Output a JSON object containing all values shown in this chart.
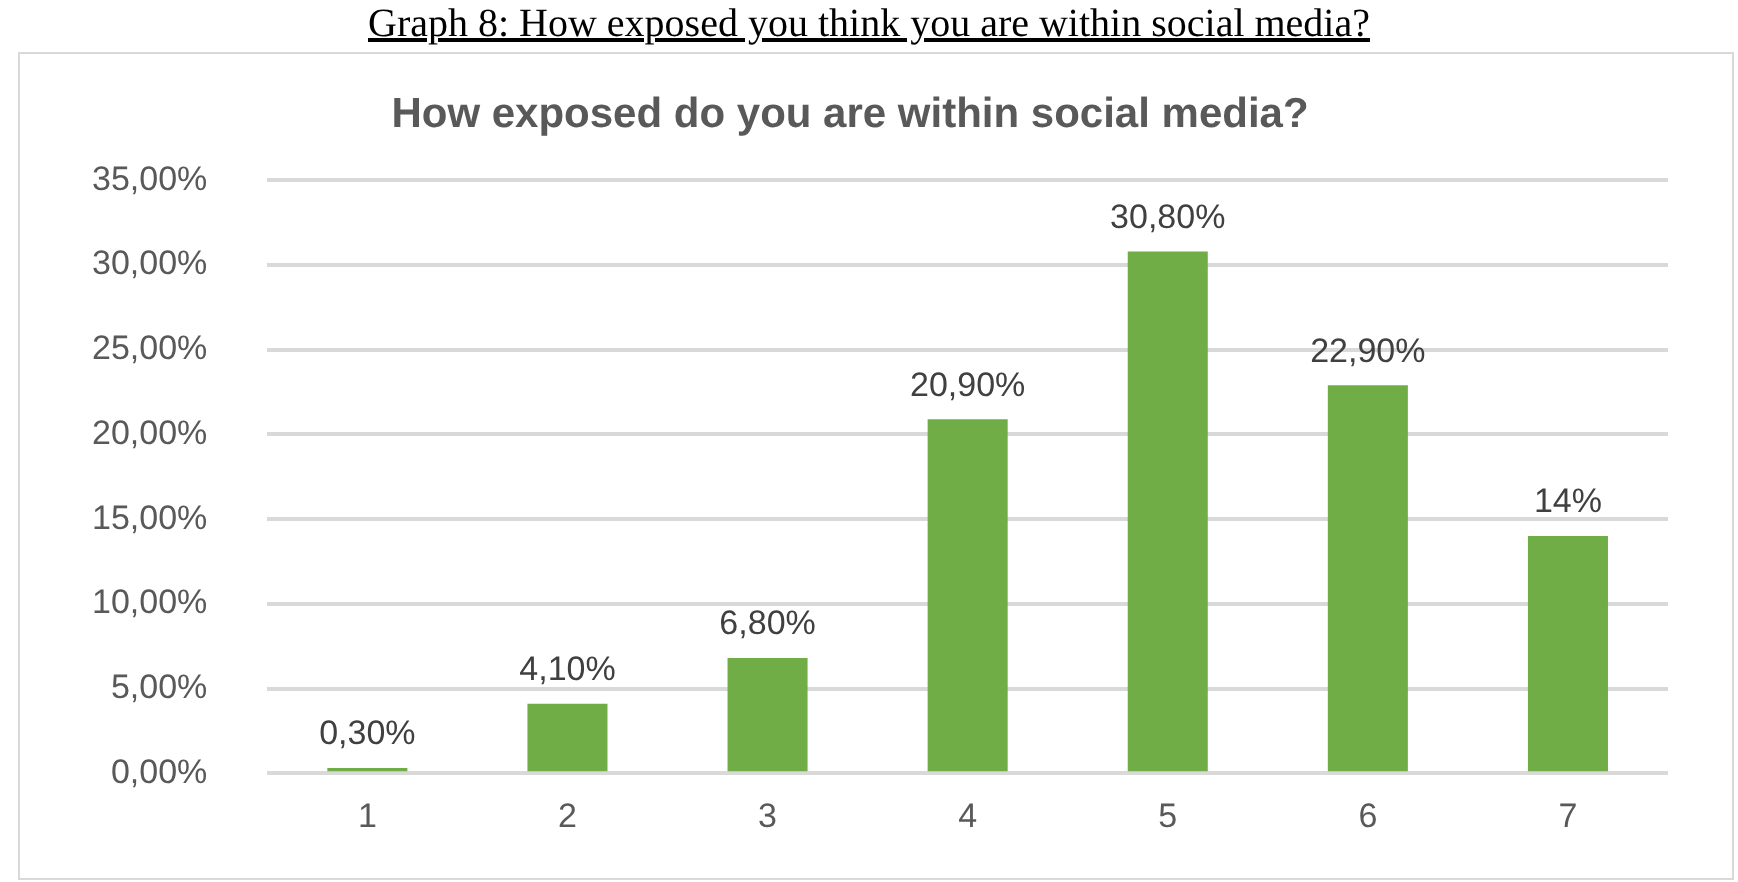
{
  "chart_data": {
    "type": "bar",
    "title": "How exposed do you are within social media?",
    "annotations": [
      "Graph 8: How exposed you think you are within social media?"
    ],
    "categories": [
      "1",
      "2",
      "3",
      "4",
      "5",
      "6",
      "7"
    ],
    "values": [
      0.3,
      4.1,
      6.8,
      20.9,
      30.8,
      22.9,
      14
    ],
    "value_labels": [
      "0,30%",
      "4,10%",
      "6,80%",
      "20,90%",
      "30,80%",
      "22,90%",
      "14%"
    ],
    "color": "#70ad47",
    "ylim": [
      0,
      35
    ],
    "yticks": [
      {
        "value": 0,
        "label": "0,00%"
      },
      {
        "value": 5,
        "label": "5,00%"
      },
      {
        "value": 10,
        "label": "10,00%"
      },
      {
        "value": 15,
        "label": "15,00%"
      },
      {
        "value": 20,
        "label": "20,00%"
      },
      {
        "value": 25,
        "label": "25,00%"
      },
      {
        "value": 30,
        "label": "30,00%"
      },
      {
        "value": 35,
        "label": "35,00%"
      }
    ],
    "grid": "y"
  }
}
